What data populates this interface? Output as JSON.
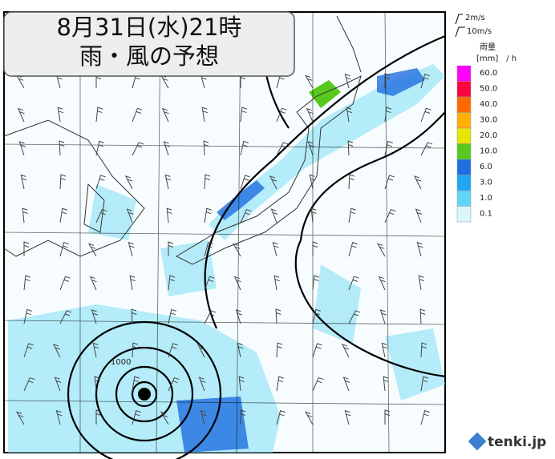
{
  "title": [
    "8月31日(水)21時",
    "雨・風の予想"
  ],
  "wind_legend": [
    "2m/s",
    "10m/s"
  ],
  "rain_legend": {
    "title": "雨量",
    "unit": "[mm]　/ h",
    "items": [
      {
        "label": "60.0",
        "color": "#ff00ff"
      },
      {
        "label": "50.0",
        "color": "#ff0040"
      },
      {
        "label": "40.0",
        "color": "#ff6a00"
      },
      {
        "label": "30.0",
        "color": "#ffb000"
      },
      {
        "label": "20.0",
        "color": "#e6e600"
      },
      {
        "label": "10.0",
        "color": "#58c81c"
      },
      {
        "label": "6.0",
        "color": "#1f6ee0"
      },
      {
        "label": "3.0",
        "color": "#1ea8f0"
      },
      {
        "label": "1.0",
        "color": "#5fd6f7"
      },
      {
        "label": "0.1",
        "color": "#d9f6fd"
      }
    ]
  },
  "isobar_label": "1000",
  "brand": "tenki.jp"
}
